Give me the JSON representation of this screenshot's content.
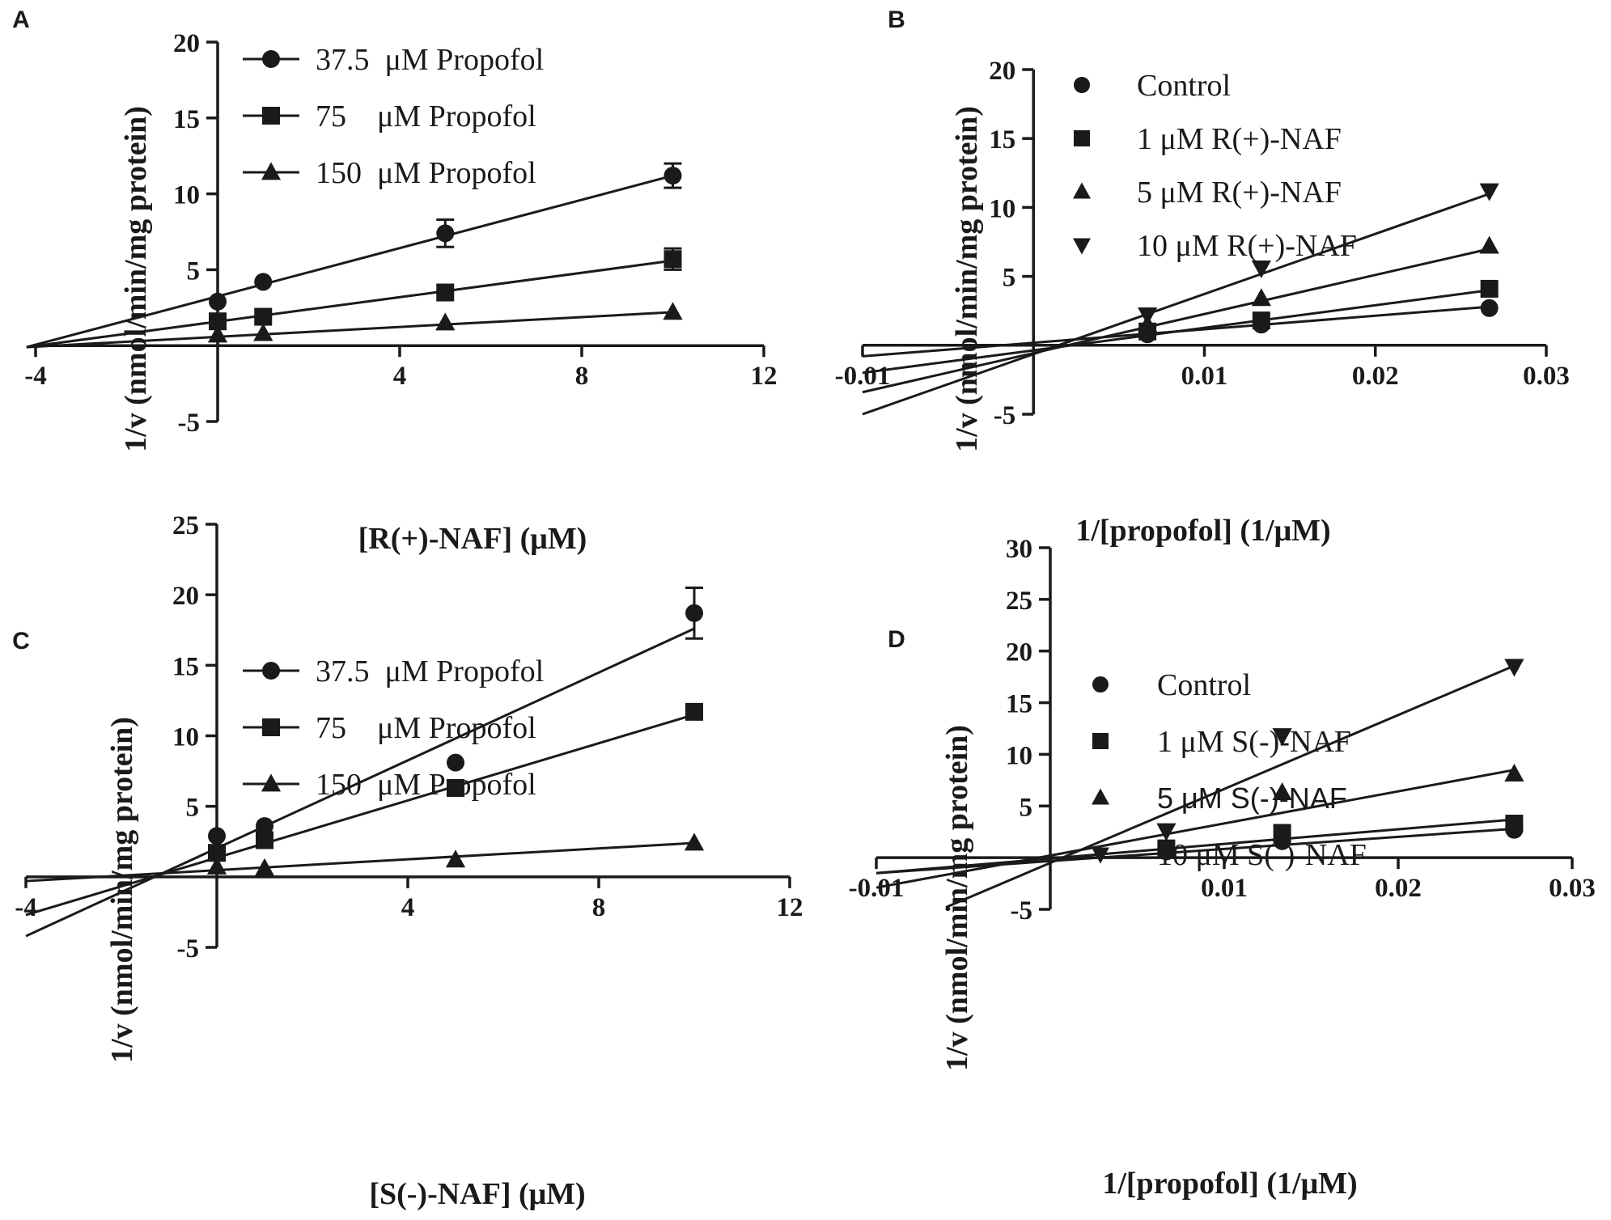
{
  "chart_data": [
    {
      "panel": "A",
      "type": "line",
      "xlabel": "[R(+)-NAF] (μM)",
      "ylabel": "1/v (nmol/min/mg protein)",
      "xlim": [
        -4,
        12
      ],
      "ylim": [
        -5,
        20
      ],
      "xticks": [
        -4,
        4,
        8,
        12
      ],
      "yticks": [
        -5,
        5,
        10,
        15,
        20
      ],
      "series": [
        {
          "name": "37.5  μM Propofol",
          "marker": "circle",
          "x": [
            0,
            1,
            5,
            10
          ],
          "y": [
            2.9,
            4.2,
            7.4,
            11.2
          ],
          "err": [
            0,
            0,
            0.9,
            0.8
          ],
          "fit": {
            "x": [
              -4.2,
              10
            ],
            "y": [
              -0.1,
              11.2
            ]
          }
        },
        {
          "name": "75    μM Propofol",
          "marker": "square",
          "x": [
            0,
            1,
            5,
            10
          ],
          "y": [
            1.6,
            1.9,
            3.5,
            5.7
          ],
          "err": [
            0,
            0,
            0,
            0.7
          ],
          "fit": {
            "x": [
              -4.2,
              10
            ],
            "y": [
              -0.1,
              5.6
            ]
          }
        },
        {
          "name": "150  μM Propofol",
          "marker": "triangle",
          "x": [
            0,
            1,
            5,
            10
          ],
          "y": [
            0.7,
            0.8,
            1.5,
            2.2
          ],
          "err": [
            0,
            0,
            0,
            0
          ],
          "fit": {
            "x": [
              -4.2,
              10
            ],
            "y": [
              -0.1,
              2.2
            ]
          }
        }
      ]
    },
    {
      "panel": "B",
      "type": "line",
      "xlabel": "1/[propofol] (1/μM)",
      "ylabel": "1/v (nmol/min/mg protein)",
      "xlim": [
        -0.01,
        0.03
      ],
      "ylim": [
        -5,
        20
      ],
      "xticks": [
        -0.01,
        0.01,
        0.02,
        0.03
      ],
      "yticks": [
        -5,
        5,
        10,
        15,
        20
      ],
      "series": [
        {
          "name": "Control",
          "marker": "circle",
          "x": [
            0.00667,
            0.01333,
            0.02667
          ],
          "y": [
            0.8,
            1.5,
            2.7
          ],
          "err": [
            0,
            0,
            0
          ],
          "fit": {
            "x": [
              -0.01,
              0.0267
            ],
            "y": [
              -0.8,
              2.8
            ]
          }
        },
        {
          "name": "1 μM R(+)-NAF",
          "marker": "square",
          "x": [
            0.00667,
            0.01333,
            0.02667
          ],
          "y": [
            1.0,
            1.8,
            4.1
          ],
          "err": [
            0,
            0,
            0
          ],
          "fit": {
            "x": [
              -0.01,
              0.0267
            ],
            "y": [
              -2.0,
              4.0
            ]
          }
        },
        {
          "name": "5 μM R(+)-NAF",
          "marker": "triangle",
          "x": [
            0.00667,
            0.01333,
            0.02667
          ],
          "y": [
            1.5,
            3.4,
            7.2
          ],
          "err": [
            0,
            0,
            0
          ],
          "fit": {
            "x": [
              -0.01,
              0.0267
            ],
            "y": [
              -3.4,
              7.0
            ]
          }
        },
        {
          "name": "10 μM R(+)-NAF",
          "marker": "triangle-down",
          "x": [
            0.00667,
            0.01333,
            0.02667
          ],
          "y": [
            2.2,
            5.6,
            11.2
          ],
          "err": [
            0,
            0,
            0
          ],
          "fit": {
            "x": [
              -0.01,
              0.0267
            ],
            "y": [
              -5.0,
              11.0
            ]
          }
        }
      ]
    },
    {
      "panel": "C",
      "type": "line",
      "xlabel": "[S(-)-NAF] (μM)",
      "ylabel": "1/v (nmol/min/mg protein)",
      "xlim": [
        -4,
        12
      ],
      "ylim": [
        -5,
        25
      ],
      "xticks": [
        -4,
        4,
        8,
        12
      ],
      "yticks": [
        -5,
        5,
        10,
        15,
        20,
        25
      ],
      "series": [
        {
          "name": "37.5  μM Propofol",
          "marker": "circle",
          "x": [
            0,
            1,
            5,
            10
          ],
          "y": [
            2.9,
            3.6,
            8.1,
            18.7
          ],
          "err": [
            0,
            0,
            0,
            1.8
          ],
          "fit": {
            "x": [
              -4,
              10
            ],
            "y": [
              -4.2,
              17.6
            ]
          }
        },
        {
          "name": "75    μM Propofol",
          "marker": "square",
          "x": [
            0,
            1,
            5,
            10
          ],
          "y": [
            1.7,
            2.6,
            6.3,
            11.7
          ],
          "err": [
            0,
            0,
            0,
            0
          ],
          "fit": {
            "x": [
              -4,
              10
            ],
            "y": [
              -2.7,
              11.5
            ]
          }
        },
        {
          "name": "150  μM Propofol",
          "marker": "triangle",
          "x": [
            0,
            1,
            5,
            10
          ],
          "y": [
            0.7,
            0.6,
            1.2,
            2.4
          ],
          "err": [
            0,
            0,
            0,
            0
          ],
          "fit": {
            "x": [
              -4,
              10
            ],
            "y": [
              -0.3,
              2.4
            ]
          }
        }
      ]
    },
    {
      "panel": "D",
      "type": "line",
      "xlabel": "1/[propofol] (1/μM)",
      "ylabel": "1/v (nmol/min/mg protein)",
      "xlim": [
        -0.01,
        0.03
      ],
      "ylim": [
        -5,
        30
      ],
      "xticks": [
        -0.01,
        0.01,
        0.02,
        0.03
      ],
      "yticks": [
        -5,
        5,
        10,
        15,
        20,
        25,
        30
      ],
      "series": [
        {
          "name": "Control",
          "marker": "circle",
          "x": [
            0.00667,
            0.01333,
            0.02667
          ],
          "y": [
            0.6,
            1.6,
            2.7
          ],
          "err": [
            0,
            0,
            0
          ],
          "fit": {
            "x": [
              -0.01,
              0.0267
            ],
            "y": [
              -1.5,
              2.8
            ]
          }
        },
        {
          "name": "1 μM S(-)-NAF",
          "marker": "square",
          "x": [
            0.00667,
            0.01333,
            0.02667
          ],
          "y": [
            0.9,
            2.4,
            3.3
          ],
          "err": [
            0,
            0,
            0
          ],
          "fit": {
            "x": [
              -0.01,
              0.0267
            ],
            "y": [
              -1.5,
              3.7
            ]
          }
        },
        {
          "name": "5 μM S(-)-NAF",
          "marker": "triangle",
          "x": [
            0.00667,
            0.01333,
            0.02667
          ],
          "y": [
            1.0,
            6.3,
            8.1
          ],
          "err": [
            0,
            0,
            0
          ],
          "fit": {
            "x": [
              -0.01,
              0.0267
            ],
            "y": [
              -2.9,
              8.5
            ]
          }
        },
        {
          "name": "10 μM S(-)-NAF",
          "marker": "triangle-down",
          "x": [
            0.00667,
            0.01333,
            0.02667
          ],
          "y": [
            2.6,
            11.8,
            18.5
          ],
          "err": [
            0,
            0,
            0
          ],
          "fit": {
            "x": [
              -0.006,
              0.0267
            ],
            "y": [
              -4.8,
              18.6
            ]
          }
        }
      ]
    }
  ]
}
